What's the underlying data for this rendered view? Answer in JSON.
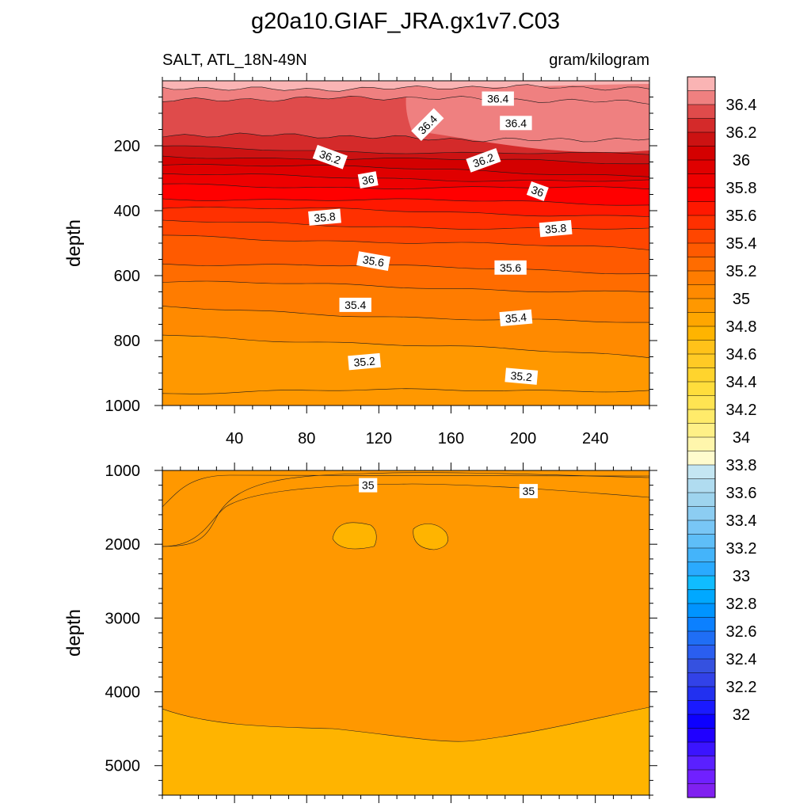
{
  "chart_data": {
    "type": "contour",
    "title": "g20a10.GIAF_JRA.gx1v7.C03",
    "left_subtitle": "SALT, ATL_18N-49N",
    "right_subtitle": "gram/kilogram",
    "panels": [
      {
        "name": "upper",
        "ylabel": "depth",
        "xlim": [
          0,
          270
        ],
        "ylim": [
          0,
          1000
        ],
        "x_ticks": [
          40,
          80,
          120,
          160,
          200,
          240
        ],
        "y_ticks": [
          200,
          400,
          600,
          800,
          1000
        ],
        "contour_levels": [
          36.6,
          36.5,
          36.4,
          36.3,
          36.2,
          36.1,
          36.0,
          35.9,
          35.8,
          35.7,
          35.6,
          35.5,
          35.4,
          35.3,
          35.2,
          35.1,
          35.0
        ],
        "contour_depths_left": [
          20,
          55,
          170,
          205,
          230,
          255,
          290,
          320,
          360,
          390,
          435,
          475,
          560,
          620,
          700,
          780,
          960
        ],
        "contour_depths_right": [
          25,
          60,
          180,
          230,
          255,
          290,
          310,
          335,
          380,
          415,
          460,
          520,
          590,
          650,
          750,
          850,
          950
        ],
        "labels": [
          {
            "text": "36.4",
            "x": 186,
            "y": 55,
            "angle": 0
          },
          {
            "text": "36.4",
            "x": 147,
            "y": 135,
            "angle": -45
          },
          {
            "text": "36.4",
            "x": 196,
            "y": 130,
            "angle": 0
          },
          {
            "text": "36.2",
            "x": 93,
            "y": 235,
            "angle": 20
          },
          {
            "text": "36.2",
            "x": 178,
            "y": 245,
            "angle": -20
          },
          {
            "text": "36",
            "x": 114,
            "y": 305,
            "angle": -10
          },
          {
            "text": "36",
            "x": 208,
            "y": 340,
            "angle": 20
          },
          {
            "text": "35.8",
            "x": 90,
            "y": 420,
            "angle": -5
          },
          {
            "text": "35.8",
            "x": 218,
            "y": 455,
            "angle": -5
          },
          {
            "text": "35.6",
            "x": 117,
            "y": 555,
            "angle": 10
          },
          {
            "text": "35.6",
            "x": 193,
            "y": 575,
            "angle": 0
          },
          {
            "text": "35.4",
            "x": 107,
            "y": 690,
            "angle": 0
          },
          {
            "text": "35.4",
            "x": 196,
            "y": 730,
            "angle": -5
          },
          {
            "text": "35.2",
            "x": 112,
            "y": 865,
            "angle": -5
          },
          {
            "text": "35.2",
            "x": 199,
            "y": 910,
            "angle": 5
          }
        ]
      },
      {
        "name": "lower",
        "ylabel": "depth",
        "xlim": [
          0,
          270
        ],
        "ylim": [
          1000,
          5400
        ],
        "x_ticks": [
          40,
          80,
          120,
          160,
          200,
          240
        ],
        "y_ticks": [
          1000,
          2000,
          3000,
          4000,
          5000
        ],
        "labels": [
          {
            "text": "35",
            "x": 114,
            "y": 1200,
            "angle": 0
          },
          {
            "text": "35",
            "x": 203,
            "y": 1280,
            "angle": 0
          }
        ]
      }
    ],
    "colorbar": {
      "min": 32.0,
      "max": 36.6,
      "step": 0.1,
      "tick_labels": [
        "36.4",
        "36.2",
        "36",
        "35.8",
        "35.6",
        "35.4",
        "35.2",
        "35",
        "34.8",
        "34.6",
        "34.4",
        "34.2",
        "34",
        "33.8",
        "33.6",
        "33.4",
        "33.2",
        "33",
        "32.8",
        "32.6",
        "32.4",
        "32.2",
        "32"
      ],
      "colors": [
        "#fab4b4",
        "#ef8080",
        "#df4b4b",
        "#d42a2a",
        "#cc1212",
        "#d40000",
        "#e00000",
        "#ee0000",
        "#ff0000",
        "#ff1800",
        "#ff3000",
        "#ff4600",
        "#ff5a00",
        "#ff6c00",
        "#ff7c00",
        "#ff8a00",
        "#ff9800",
        "#ffa600",
        "#ffb400",
        "#ffc219",
        "#ffca25",
        "#ffd42d",
        "#ffdd3c",
        "#ffe452",
        "#ffeb6a",
        "#fff087",
        "#fff6ac",
        "#fffbcd",
        "#c4e6f2",
        "#b0dcf0",
        "#9ed4ee",
        "#8ccdf2",
        "#78c6f6",
        "#5ebef8",
        "#44b4fa",
        "#2aaaff",
        "#10bcff",
        "#00a8ff",
        "#0094ff",
        "#0c80ff",
        "#1f6ef5",
        "#2a5ef0",
        "#3551e0",
        "#3242e8",
        "#2230f0",
        "#1a1aff",
        "#0d00ff",
        "#2000ff",
        "#3b14ff",
        "#5a20ff",
        "#7020ff",
        "#8020f0"
      ]
    }
  }
}
